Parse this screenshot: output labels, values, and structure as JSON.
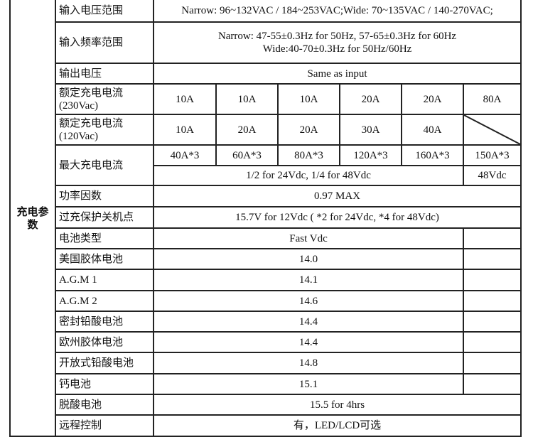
{
  "group_label": "充电参数",
  "rows": {
    "input_voltage": {
      "label": "输入电压范围",
      "value": "Narrow: 96~132VAC / 184~253VAC;Wide: 70~135VAC / 140-270VAC;"
    },
    "input_freq": {
      "label": "输入频率范围",
      "line1": "Narrow: 47-55±0.3Hz for 50Hz, 57-65±0.3Hz for 60Hz",
      "line2": "Wide:40-70±0.3Hz  for 50Hz/60Hz"
    },
    "output_voltage": {
      "label": "输出电压",
      "value": "Same as input"
    },
    "rated_230": {
      "label": "额定充电电流 (230Vac)",
      "values": [
        "10A",
        "10A",
        "10A",
        "20A",
        "20A",
        "80A"
      ]
    },
    "rated_120": {
      "label": "额定充电电流 (120Vac)",
      "values": [
        "10A",
        "20A",
        "20A",
        "30A",
        "40A"
      ]
    },
    "max_current": {
      "label": "最大充电电流",
      "values": [
        "40A*3",
        "60A*3",
        "80A*3",
        "120A*3",
        "160A*3",
        "150A*3"
      ],
      "note": "1/2 for 24Vdc, 1/4 for 48Vdc",
      "note_last": "48Vdc"
    },
    "power_factor": {
      "label": "功率因数",
      "value": "0.97 MAX"
    },
    "overcharge": {
      "label": "过充保护关机点",
      "value": "15.7V for 12Vdc ( *2 for 24Vdc, *4 for 48Vdc)"
    },
    "battery_type": {
      "label": "电池类型",
      "value": "Fast Vdc"
    },
    "batteries": [
      {
        "label": "美国胶体电池",
        "value": "14.0"
      },
      {
        "label": "A.G.M 1",
        "value": "14.1"
      },
      {
        "label": "A.G.M 2",
        "value": "14.6"
      },
      {
        "label": "密封铅酸电池",
        "value": "14.4"
      },
      {
        "label": "欧州胶体电池",
        "value": "14.4"
      },
      {
        "label": "开放式铅酸电池",
        "value": "14.8"
      },
      {
        "label": "钙电池",
        "value": "15.1"
      }
    ],
    "desulfation": {
      "label": "脱酸电池",
      "value": "15.5 for 4hrs"
    },
    "remote": {
      "label": "远程控制",
      "value": "有，LED/LCD可选"
    }
  }
}
